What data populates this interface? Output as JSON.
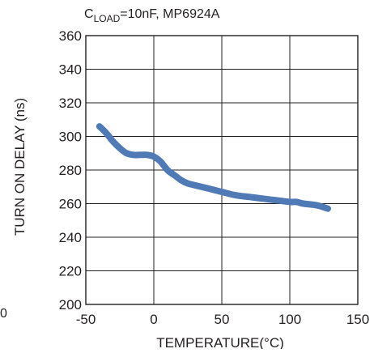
{
  "chart_data": {
    "type": "line",
    "subtitle_main": "C",
    "subtitle_sub": "LOAD",
    "subtitle_rest": "=10nF, MP6924A",
    "xlabel": "TEMPERATURE(°C)",
    "ylabel": "TURN ON DELAY (ns)",
    "xlim": [
      -50,
      150
    ],
    "ylim": [
      200,
      360
    ],
    "x_ticks": [
      -50,
      0,
      50,
      100,
      150
    ],
    "y_ticks": [
      200,
      220,
      240,
      260,
      280,
      300,
      320,
      340,
      360
    ],
    "grid": true,
    "edge_fragment": "0",
    "series_color": "#4f7ab5",
    "series": [
      {
        "x": [
          -40,
          -35,
          -30,
          -25,
          -20,
          -15,
          -10,
          -5,
          0,
          5,
          10,
          15,
          20,
          25,
          30,
          40,
          50,
          60,
          70,
          80,
          90,
          100,
          105,
          110,
          120,
          128
        ],
        "y": [
          306,
          302,
          297,
          293,
          290,
          289,
          289,
          289,
          288,
          285,
          280,
          277,
          274,
          272,
          271,
          269,
          267,
          265,
          264,
          263,
          262,
          261,
          261,
          260,
          259,
          257
        ]
      }
    ]
  }
}
